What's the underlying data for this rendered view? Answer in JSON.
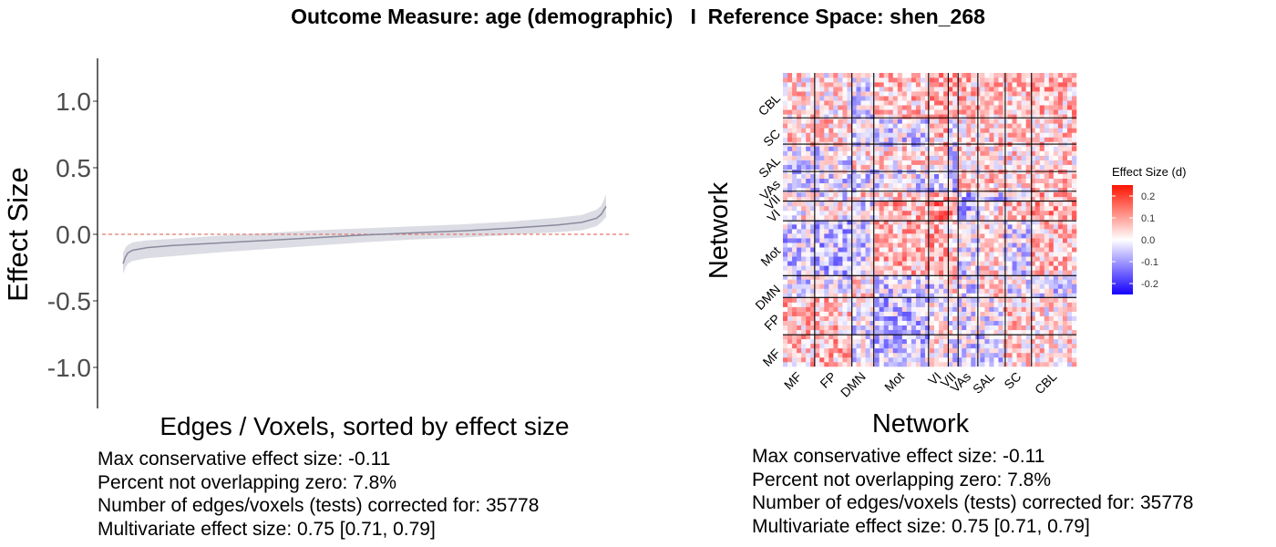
{
  "title": "Outcome Measure: age (demographic)   I  Reference Space: shen_268",
  "chart_data": [
    {
      "type": "line",
      "xlabel": "Edges / Voxels, sorted by effect size",
      "ylabel": "Effect Size",
      "ylim": [
        -1.3,
        1.3
      ],
      "yticks": [
        "1.0",
        "0.5",
        "0.0",
        "-0.5",
        "-1.0"
      ],
      "reference_line": 0.0,
      "x": [
        0,
        0.005,
        0.01,
        0.02,
        0.05,
        0.1,
        0.2,
        0.3,
        0.4,
        0.5,
        0.6,
        0.7,
        0.8,
        0.9,
        0.95,
        0.98,
        0.99,
        1.0
      ],
      "series": [
        {
          "values": [
            -0.22,
            -0.17,
            -0.14,
            -0.12,
            -0.1,
            -0.085,
            -0.065,
            -0.045,
            -0.025,
            -0.005,
            0.01,
            0.025,
            0.045,
            0.07,
            0.09,
            0.12,
            0.15,
            0.21
          ],
          "lower": [
            -0.3,
            -0.25,
            -0.22,
            -0.2,
            -0.18,
            -0.165,
            -0.135,
            -0.11,
            -0.085,
            -0.06,
            -0.04,
            -0.025,
            -0.005,
            0.015,
            0.03,
            0.06,
            0.09,
            0.13
          ],
          "upper": [
            -0.14,
            -0.1,
            -0.08,
            -0.06,
            -0.045,
            -0.035,
            -0.01,
            0.01,
            0.03,
            0.045,
            0.06,
            0.075,
            0.095,
            0.125,
            0.145,
            0.185,
            0.215,
            0.3
          ]
        }
      ],
      "colors": {
        "line": "#8a8a9e",
        "ribbon": "#dcdce4",
        "zero_line": "#e07a6a"
      }
    },
    {
      "type": "heatmap",
      "xlabel": "Network",
      "ylabel": "Network",
      "networks": [
        "MF",
        "FP",
        "DMN",
        "Mot",
        "VI",
        "VII",
        "VAs",
        "SAL",
        "SC",
        "CBL"
      ],
      "x_tick_labels": [
        "MF",
        "FP",
        "DMN",
        "Mot",
        "VI",
        "VII",
        "VAs",
        "SAL",
        "SC",
        "CBL"
      ],
      "y_tick_labels": [
        "CBL",
        "SC",
        "SAL",
        "VAs",
        "VII",
        "VI",
        "Mot",
        "DMN",
        "FP",
        "MF"
      ],
      "network_sizes": [
        29,
        34,
        20,
        50,
        18,
        9,
        18,
        25,
        24,
        41
      ],
      "block_mean_effect": [
        [
          0.06,
          0.07,
          -0.03,
          -0.05,
          0.02,
          -0.02,
          -0.04,
          -0.03,
          0.05,
          0.04
        ],
        [
          0.07,
          0.06,
          -0.02,
          -0.06,
          0.01,
          -0.01,
          -0.03,
          -0.02,
          0.05,
          0.03
        ],
        [
          -0.03,
          -0.02,
          0.03,
          -0.04,
          -0.03,
          0.04,
          -0.03,
          0.03,
          -0.02,
          -0.03
        ],
        [
          -0.05,
          -0.06,
          -0.04,
          0.07,
          0.08,
          0.05,
          -0.02,
          0.04,
          -0.03,
          0.06
        ],
        [
          0.02,
          0.01,
          -0.03,
          0.08,
          0.12,
          0.1,
          -0.06,
          0.03,
          0.06,
          0.09
        ],
        [
          -0.02,
          -0.01,
          0.04,
          0.05,
          0.1,
          0.11,
          -0.07,
          -0.04,
          -0.03,
          0.08
        ],
        [
          -0.04,
          -0.03,
          -0.03,
          -0.02,
          -0.06,
          -0.07,
          0.03,
          0.05,
          0.04,
          0.06
        ],
        [
          -0.03,
          -0.02,
          0.03,
          0.04,
          0.03,
          -0.04,
          0.05,
          0.03,
          0.04,
          0.05
        ],
        [
          0.05,
          0.05,
          -0.02,
          -0.03,
          0.06,
          -0.03,
          0.04,
          0.04,
          0.07,
          0.05
        ],
        [
          0.04,
          0.03,
          -0.03,
          0.06,
          0.09,
          0.08,
          0.06,
          0.05,
          0.05,
          0.07
        ]
      ],
      "legend": {
        "title": "Effect Size (d)",
        "ticks": [
          "0.2",
          "0.1",
          "0.0",
          "-0.1",
          "-0.2"
        ],
        "tick_values": [
          0.2,
          0.1,
          0.0,
          -0.1,
          -0.2
        ],
        "range": [
          -0.25,
          0.25
        ],
        "placement": "right"
      },
      "colors": {
        "low": "#1400ff",
        "mid": "#ffffff",
        "high": "#ff1400",
        "block_lines": "#000000"
      }
    }
  ],
  "stats": [
    "Max conservative effect size: -0.11",
    "Percent not overlapping zero: 7.8%",
    "Number of edges/voxels (tests) corrected for: 35778",
    "Multivariate effect size: 0.75 [0.71, 0.79]"
  ]
}
